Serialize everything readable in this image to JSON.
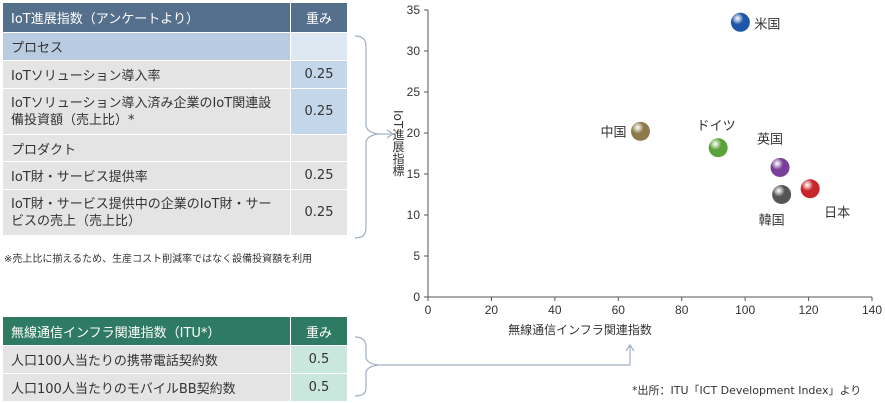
{
  "iot_table": {
    "header": {
      "name": "IoT進展指数（アンケートより）",
      "weight": "重み"
    },
    "rows": [
      {
        "kind": "section",
        "name": "プロセス",
        "weight": ""
      },
      {
        "kind": "item",
        "name": "IoTソリューション導入率",
        "weight": "0.25"
      },
      {
        "kind": "item",
        "name": "IoTソリューション導入済み企業のIoT関連設備投資額（売上比）*",
        "weight": "0.25"
      },
      {
        "kind": "section",
        "name": "プロダクト",
        "weight": ""
      },
      {
        "kind": "item",
        "name": "IoT財・サービス提供率",
        "weight": "0.25"
      },
      {
        "kind": "item",
        "name": "IoT財・サービス提供中の企業のIoT財・サービスの売上（売上比）",
        "weight": "0.25"
      }
    ],
    "note": "※売上比に揃えるため、生産コスト削減率ではなく設備投資額を利用"
  },
  "itu_table": {
    "header": {
      "name": "無線通信インフラ関連指数（ITU*）",
      "weight": "重み"
    },
    "rows": [
      {
        "name": "人口100人当たりの携帯電話契約数",
        "weight": "0.5"
      },
      {
        "name": "人口100人当たりのモバイルBB契約数",
        "weight": "0.5"
      }
    ]
  },
  "source": "*出所：ITU「ICT Development Index」より",
  "chart_data": {
    "type": "scatter",
    "xlabel": "無線通信インフラ関連指数",
    "ylabel": "IoT進展指標",
    "xlim": [
      0,
      140
    ],
    "ylim": [
      0,
      35
    ],
    "xticks": [
      0,
      20,
      40,
      60,
      80,
      100,
      120,
      140
    ],
    "yticks": [
      0,
      5,
      10,
      15,
      20,
      25,
      30,
      35
    ],
    "grid": false,
    "points": [
      {
        "label": "米国",
        "x": 98.5,
        "y": 33.5,
        "color": "#1f57a8"
      },
      {
        "label": "中国",
        "x": 67,
        "y": 20.2,
        "color": "#8c7a4a"
      },
      {
        "label": "ドイツ",
        "x": 91.5,
        "y": 18.2,
        "color": "#5aa33a"
      },
      {
        "label": "英国",
        "x": 111,
        "y": 15.8,
        "color": "#7a3f9a"
      },
      {
        "label": "日本",
        "x": 120.5,
        "y": 13.2,
        "color": "#c8262a"
      },
      {
        "label": "韓国",
        "x": 111.5,
        "y": 12.5,
        "color": "#555555"
      }
    ]
  }
}
